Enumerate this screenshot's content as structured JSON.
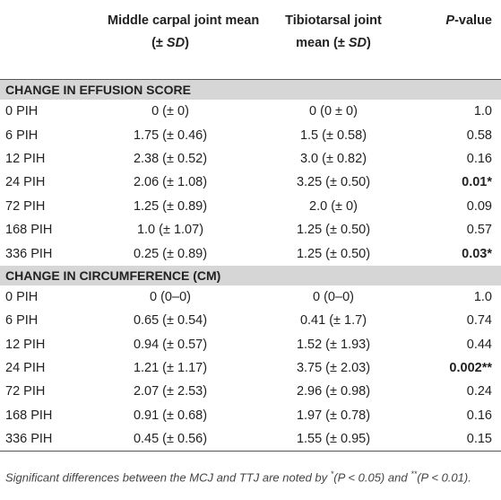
{
  "header": {
    "columns": [
      [
        {
          "text": "Middle carpal joint mean",
          "style": "plain"
        },
        {
          "text": "(± ",
          "style": "plain",
          "break": true
        },
        {
          "text": "SD",
          "style": "italic"
        },
        {
          "text": ")",
          "style": "plain"
        }
      ],
      [
        {
          "text": "Tibiotarsal joint",
          "style": "plain"
        },
        {
          "text": "mean (± ",
          "style": "plain",
          "break": true
        },
        {
          "text": "SD",
          "style": "italic"
        },
        {
          "text": ")",
          "style": "plain"
        }
      ],
      [
        {
          "text": "P",
          "style": "italic"
        },
        {
          "text": "-value",
          "style": "plain"
        }
      ]
    ]
  },
  "sections": [
    {
      "title": "CHANGE IN EFFUSION SCORE",
      "rows": [
        [
          "0 PIH",
          "0 (± 0)",
          "0 (0 ± 0)",
          "1.0"
        ],
        [
          "6 PIH",
          "1.75 (± 0.46)",
          "1.5 (± 0.58)",
          "0.58"
        ],
        [
          "12 PIH",
          "2.38 (± 0.52)",
          "3.0 (± 0.82)",
          "0.16"
        ],
        [
          "24 PIH",
          "2.06 (± 1.08)",
          "3.25 (± 0.50)",
          {
            "text": "0.01*",
            "bold": true
          }
        ],
        [
          "72 PIH",
          "1.25 (± 0.89)",
          "2.0 (± 0)",
          "0.09"
        ],
        [
          "168 PIH",
          "1.0 (± 1.07)",
          "1.25 (± 0.50)",
          "0.57"
        ],
        [
          "336 PIH",
          "0.25 (± 0.89)",
          "1.25 (± 0.50)",
          {
            "text": "0.03*",
            "bold": true
          }
        ]
      ]
    },
    {
      "title": "CHANGE IN CIRCUMFERENCE (CM)",
      "rows": [
        [
          "0 PIH",
          "0 (0–0)",
          "0 (0–0)",
          "1.0"
        ],
        [
          "6 PIH",
          "0.65 (± 0.54)",
          "0.41 (± 1.7)",
          "0.74"
        ],
        [
          "12 PIH",
          "0.94 (± 0.57)",
          "1.52 (± 1.93)",
          "0.44"
        ],
        [
          "24 PIH",
          "1.21 (± 1.17)",
          "3.75 (± 2.03)",
          {
            "text": "0.002**",
            "bold": true
          }
        ],
        [
          "72 PIH",
          "2.07 (± 2.53)",
          "2.96 (± 0.98)",
          "0.24"
        ],
        [
          "168 PIH",
          "0.91 (± 0.68)",
          "1.97 (± 0.78)",
          "0.16"
        ],
        [
          "336 PIH",
          "0.45 (± 0.56)",
          "1.55 (± 0.95)",
          "0.15"
        ]
      ]
    }
  ],
  "footnote": [
    {
      "text": "Significant differences between the MCJ and TTJ are noted by ",
      "style": "plain"
    },
    {
      "text": "*",
      "style": "sup"
    },
    {
      "text": "(",
      "style": "plain"
    },
    {
      "text": "P",
      "style": "italic"
    },
    {
      "text": " < 0.05) and ",
      "style": "plain"
    },
    {
      "text": "**",
      "style": "sup"
    },
    {
      "text": "(",
      "style": "plain"
    },
    {
      "text": "P",
      "style": "italic"
    },
    {
      "text": " < 0.01).",
      "style": "plain"
    }
  ]
}
